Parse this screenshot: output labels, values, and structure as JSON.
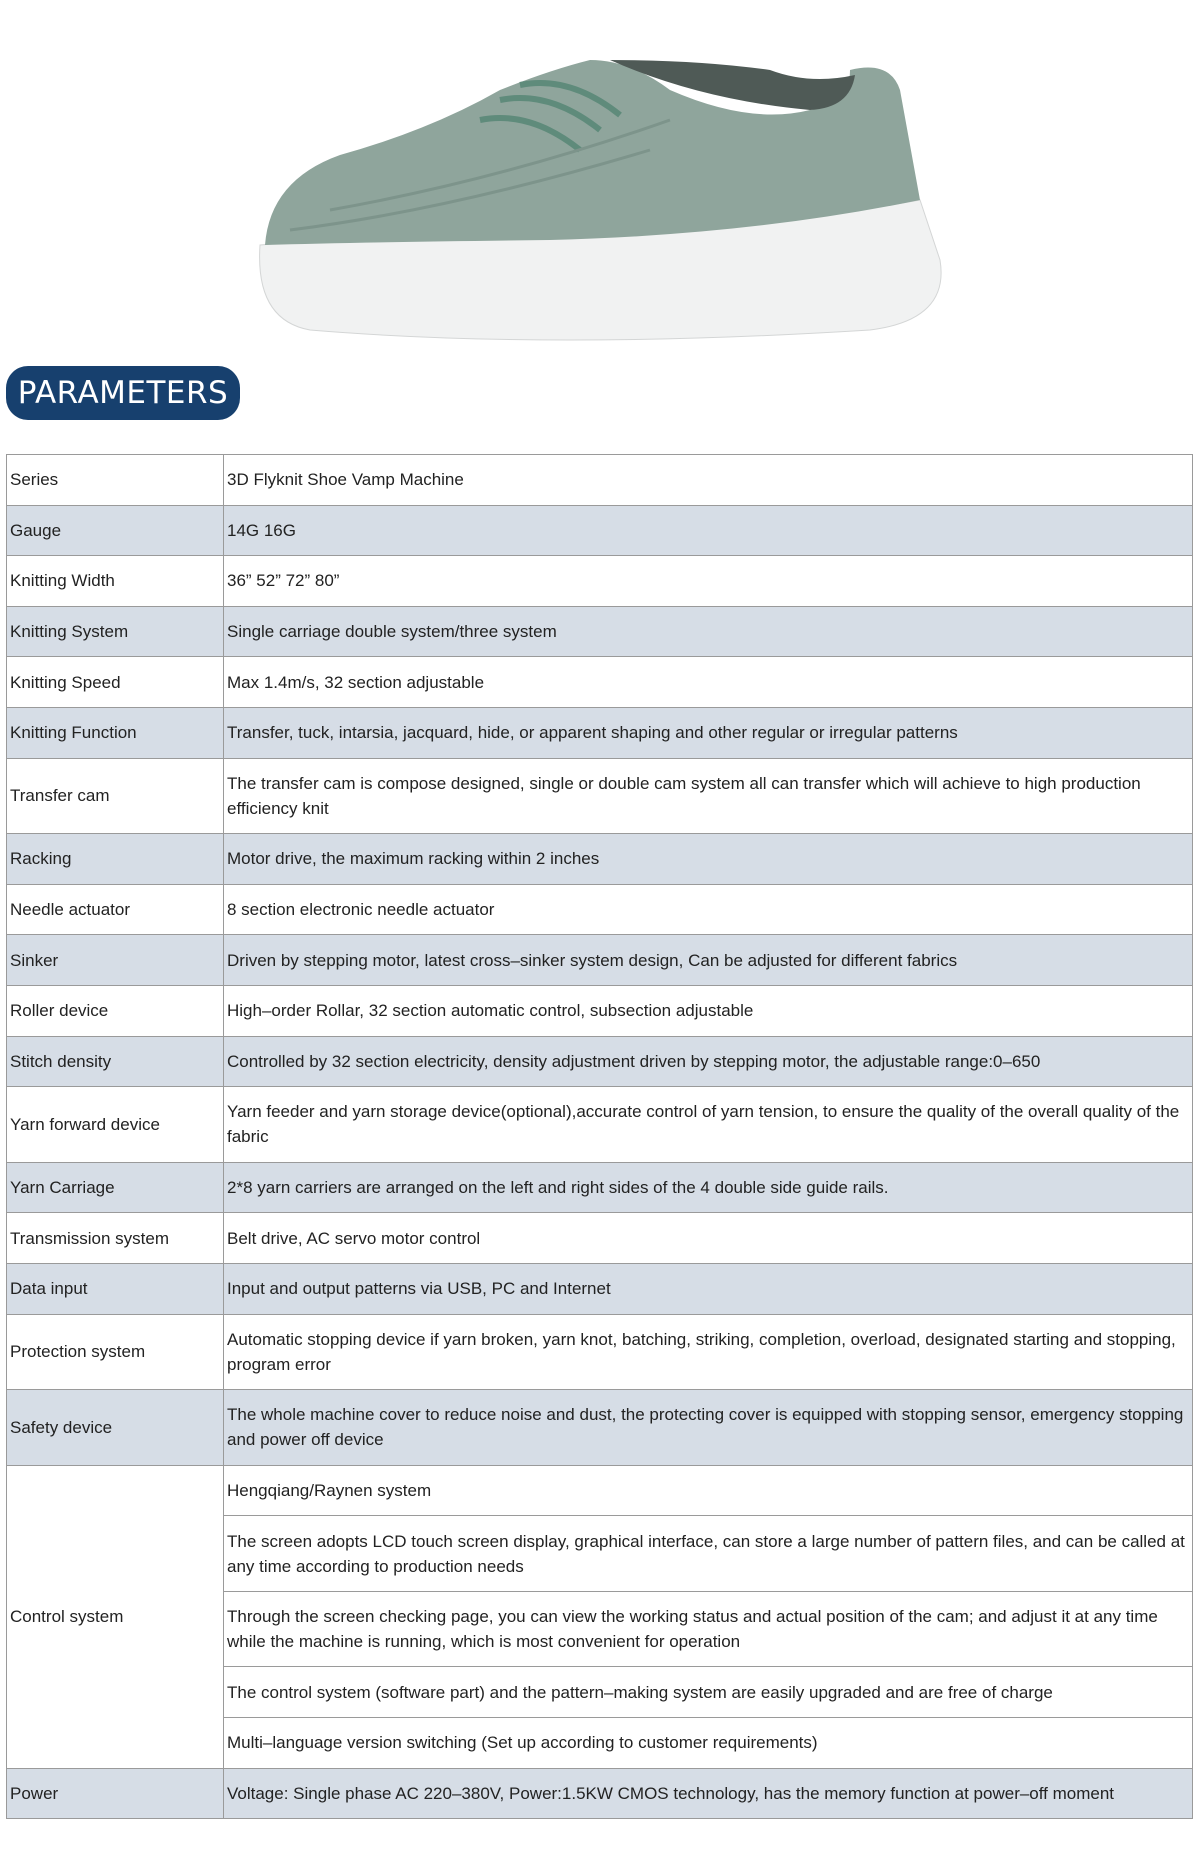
{
  "header": {
    "badge": "PARAMETERS"
  },
  "colors": {
    "badge": "#17406e",
    "row_alt": "#d6dde6"
  },
  "rows": [
    {
      "k": "Series",
      "v": "3D Flyknit Shoe Vamp Machine"
    },
    {
      "k": "Gauge",
      "v": "14G 16G"
    },
    {
      "k": "Knitting Width",
      "v": "36” 52” 72” 80”"
    },
    {
      "k": "Knitting System",
      "v": "Single carriage double system/three system"
    },
    {
      "k": "Knitting Speed",
      "v": "Max 1.4m/s, 32 section adjustable"
    },
    {
      "k": "Knitting Function",
      "v": "Transfer, tuck, intarsia, jacquard, hide, or apparent shaping and other regular or irregular patterns"
    },
    {
      "k": "Transfer cam",
      "v": "The transfer cam is compose designed, single or double cam system all can transfer which will achieve to high production efficiency knit"
    },
    {
      "k": "Racking",
      "v": "Motor drive, the maximum racking within 2 inches"
    },
    {
      "k": "Needle actuator",
      "v": "8 section electronic needle actuator"
    },
    {
      "k": "Sinker",
      "v": "Driven by stepping motor, latest cross–sinker system design, Can be adjusted for different fabrics"
    },
    {
      "k": "Roller device",
      "v": "High–order Rollar, 32 section automatic control, subsection adjustable"
    },
    {
      "k": "Stitch density",
      "v": "Controlled by 32 section electricity, density adjustment driven by stepping motor, the adjustable range:0–650"
    },
    {
      "k": "Yarn forward device",
      "v": "Yarn feeder and yarn storage device(optional),accurate control of yarn tension, to ensure the quality of the overall quality of the fabric"
    },
    {
      "k": "Yarn Carriage",
      "v": "2*8 yarn carriers are arranged on the left and right sides of the 4 double side guide rails."
    },
    {
      "k": "Transmission system",
      "v": "Belt drive, AC servo motor control"
    },
    {
      "k": "Data input",
      "v": "Input and output patterns via USB, PC and Internet"
    },
    {
      "k": "Protection system",
      "v": "Automatic stopping device if yarn broken, yarn knot, batching, striking, completion, overload, designated starting and stopping, program error"
    },
    {
      "k": "Safety device",
      "v": "The whole machine cover to reduce noise and dust, the protecting cover is equipped with stopping sensor, emergency stopping and power off device"
    }
  ],
  "control": {
    "k": "Control system",
    "items": [
      "Hengqiang/Raynen system",
      "The screen adopts LCD touch screen display, graphical interface, can store a large number of pattern files, and can be called at any time according to production needs",
      "Through the screen checking page, you can view the working status and actual position of the cam; and adjust it at any time while the machine is running, which is most convenient for operation",
      "The control system (software part) and the pattern–making system are easily upgraded and are free of charge",
      "Multi–language version switching (Set up according to customer requirements)"
    ]
  },
  "power": {
    "k": "Power",
    "v": "Voltage: Single phase AC 220–380V, Power:1.5KW CMOS technology, has the memory function at power–off moment"
  }
}
